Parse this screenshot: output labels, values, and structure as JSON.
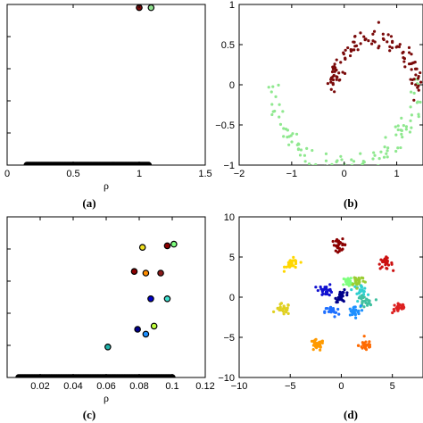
{
  "chart_data": [
    {
      "panel": "(a)",
      "type": "scatter",
      "xlabel": "ρ",
      "xlim": [
        0,
        1.5
      ],
      "ylim": [
        0,
        1
      ],
      "xticks": [
        {
          "v": 0,
          "t": "0"
        },
        {
          "v": 0.5,
          "t": "0.5"
        },
        {
          "v": 1,
          "t": "1"
        },
        {
          "v": 1.5,
          "t": "1.5"
        }
      ],
      "yticks": [],
      "series": [
        {
          "marker": "filled-circle",
          "color": "#000000",
          "stroke": "#000000",
          "points_generated": {
            "x_min": 0.15,
            "x_max": 1.07,
            "y": 0.0,
            "count": 95
          }
        },
        {
          "marker": "filled-circle",
          "color": "#7a0a0a",
          "stroke": "#000000",
          "points": [
            [
              1.0,
              0.98
            ]
          ]
        },
        {
          "marker": "filled-circle",
          "color": "#8fe08f",
          "stroke": "#000000",
          "points": [
            [
              1.09,
              0.98
            ]
          ]
        }
      ]
    },
    {
      "panel": "(b)",
      "type": "scatter",
      "xlim": [
        -2,
        1.5
      ],
      "ylim": [
        -1,
        1
      ],
      "xticks": [
        {
          "v": -2,
          "t": "−2"
        },
        {
          "v": -1,
          "t": "−1"
        },
        {
          "v": 0,
          "t": "0"
        },
        {
          "v": 1,
          "t": "1"
        }
      ],
      "yticks": [
        {
          "v": -1,
          "t": "−1"
        },
        {
          "v": -0.5,
          "t": "−0.5"
        },
        {
          "v": 0,
          "t": "0"
        },
        {
          "v": 0.5,
          "t": "0.5"
        },
        {
          "v": 1,
          "t": "1"
        }
      ],
      "series": [
        {
          "marker": "dot",
          "color": "#8fe88f",
          "shape_generated": {
            "kind": "arc",
            "cx": 0,
            "cy": 0.05,
            "r": 1.4,
            "theta_from": 180,
            "theta_to": 360,
            "count": 110,
            "noise": 0.07
          }
        },
        {
          "marker": "dot",
          "color": "#7a0a0a",
          "shape_generated": {
            "kind": "arc",
            "cx": 0.6,
            "cy": -0.05,
            "r": 0.8,
            "theta_from": 0,
            "theta_to": 180,
            "count": 110,
            "noise": 0.06
          }
        }
      ]
    },
    {
      "panel": "(c)",
      "type": "scatter",
      "xlabel": "ρ",
      "xlim": [
        0,
        0.12
      ],
      "ylim": [
        0,
        1
      ],
      "xticks": [
        {
          "v": 0.02,
          "t": "0.02"
        },
        {
          "v": 0.04,
          "t": "0.04"
        },
        {
          "v": 0.06,
          "t": "0.06"
        },
        {
          "v": 0.08,
          "t": "0.08"
        },
        {
          "v": 0.1,
          "t": "0.1"
        },
        {
          "v": 0.12,
          "t": "0.12"
        }
      ],
      "yticks": [],
      "series": [
        {
          "marker": "filled-circle",
          "color": "#000000",
          "stroke": "#000000",
          "points_generated": {
            "x_min": 0.007,
            "x_max": 0.1,
            "y": 0.0,
            "count": 110
          }
        },
        {
          "marker": "filled-circle",
          "stroke": "#000000",
          "points": [
            [
              0.082,
              0.81
            ],
            [
              0.097,
              0.82
            ],
            [
              0.101,
              0.83
            ]
          ],
          "colors": [
            "#f0e020",
            "#8b0000",
            "#7fff7f"
          ]
        },
        {
          "marker": "filled-circle",
          "stroke": "#000000",
          "points": [
            [
              0.077,
              0.66
            ],
            [
              0.084,
              0.65
            ],
            [
              0.093,
              0.65
            ]
          ],
          "colors": [
            "#8b0000",
            "#ff8c00",
            "#8b1a1a"
          ]
        },
        {
          "marker": "filled-circle",
          "stroke": "#000000",
          "points": [
            [
              0.087,
              0.49
            ],
            [
              0.097,
              0.49
            ]
          ],
          "colors": [
            "#0000cd",
            "#40e0d0"
          ]
        },
        {
          "marker": "filled-circle",
          "stroke": "#000000",
          "points": [
            [
              0.079,
              0.3
            ],
            [
              0.084,
              0.27
            ],
            [
              0.089,
              0.32
            ]
          ],
          "colors": [
            "#00008b",
            "#1e90ff",
            "#c0ff3e"
          ]
        },
        {
          "marker": "filled-circle",
          "stroke": "#000000",
          "points": [
            [
              0.061,
              0.19
            ]
          ],
          "colors": [
            "#20b2aa"
          ]
        }
      ]
    },
    {
      "panel": "(d)",
      "type": "scatter",
      "xlim": [
        -10,
        8
      ],
      "ylim": [
        -10,
        10
      ],
      "xticks": [
        {
          "v": -10,
          "t": "−10"
        },
        {
          "v": -5,
          "t": "−5"
        },
        {
          "v": 0,
          "t": "0"
        },
        {
          "v": 5,
          "t": "5"
        }
      ],
      "yticks": [
        {
          "v": -10,
          "t": "−10"
        },
        {
          "v": -5,
          "t": "−5"
        },
        {
          "v": 0,
          "t": "0"
        },
        {
          "v": 5,
          "t": "5"
        },
        {
          "v": 10,
          "t": "10"
        }
      ],
      "clusters": [
        {
          "cx": -0.2,
          "cy": 6.5,
          "color": "#8b0000"
        },
        {
          "cx": 4.3,
          "cy": 4.2,
          "color": "#cc1010"
        },
        {
          "cx": 5.7,
          "cy": -1.3,
          "color": "#dd2020"
        },
        {
          "cx": 2.4,
          "cy": -6.0,
          "color": "#ff6a00"
        },
        {
          "cx": -2.4,
          "cy": -6.0,
          "color": "#ff9a00"
        },
        {
          "cx": -5.7,
          "cy": -1.5,
          "color": "#e0d020"
        },
        {
          "cx": -4.8,
          "cy": 4.1,
          "color": "#ffd700"
        },
        {
          "cx": -1.5,
          "cy": 0.9,
          "color": "#1010d0"
        },
        {
          "cx": 0.1,
          "cy": 0.1,
          "color": "#00008b"
        },
        {
          "cx": 1.8,
          "cy": 0.9,
          "color": "#30d0d0"
        },
        {
          "cx": 2.3,
          "cy": -0.6,
          "color": "#40c0a0"
        },
        {
          "cx": 1.2,
          "cy": -1.8,
          "color": "#1e90ff"
        },
        {
          "cx": -0.9,
          "cy": -1.8,
          "color": "#1e6fff"
        },
        {
          "cx": 0.8,
          "cy": 1.9,
          "color": "#7fff7f"
        },
        {
          "cx": 1.6,
          "cy": 2.1,
          "color": "#9acd32"
        }
      ],
      "cluster_spread": 0.35,
      "points_per_cluster": 26
    }
  ]
}
